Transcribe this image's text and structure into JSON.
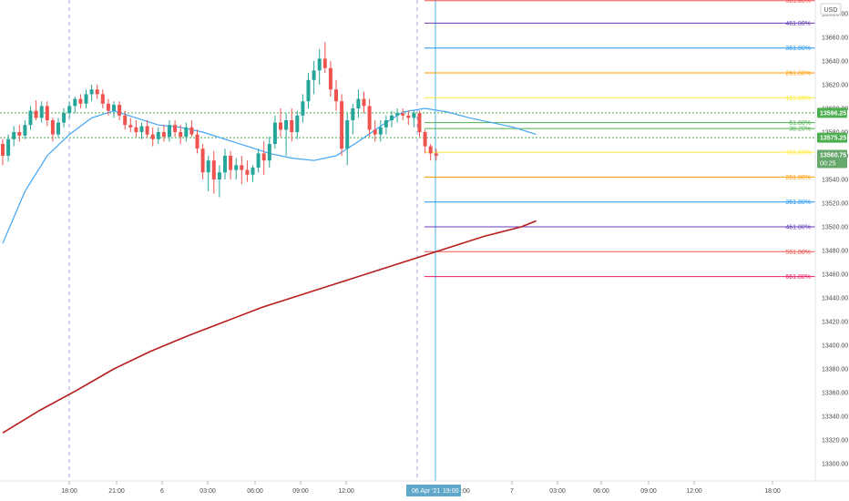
{
  "currency_label": "USD",
  "y_ticks": [
    "13680.00",
    "13660.00",
    "13640.00",
    "13620.00",
    "13600.00",
    "13580.00",
    "13560.00",
    "13540.00",
    "13520.00",
    "13500.00",
    "13480.00",
    "13460.00",
    "13440.00",
    "13420.00",
    "13400.00",
    "13380.00",
    "13360.00",
    "13340.00",
    "13320.00",
    "13300.00"
  ],
  "x_ticks": [
    "18:00",
    "21:00",
    "6",
    "03:00",
    "06:00",
    "09:00",
    "12:00",
    "7",
    "03:00",
    "06:00",
    "09:00",
    "12:00",
    "18:00"
  ],
  "cursor_date": "06 Apr '21",
  "cursor_time": "19:00",
  "cursor_right": ":00",
  "price_tags": {
    "upper": "13596.25",
    "mid": "13575.25",
    "last": "13560.75",
    "countdown": "00:25"
  },
  "colors": {
    "up": "#26a69a",
    "down": "#ef5350",
    "ema_fast": "#42a5f5",
    "ema_slow": "#b71c1c",
    "tag_green": "#4caf50",
    "cursor": "#4db6e8"
  },
  "fib_levels": [
    {
      "label": "561.80%",
      "value": 13691,
      "color": "#ef5350"
    },
    {
      "label": "461.80%",
      "value": 13672,
      "color": "#673ab7"
    },
    {
      "label": "361.80%",
      "value": 13651,
      "color": "#2196f3"
    },
    {
      "label": "261.80%",
      "value": 13630,
      "color": "#ff9800"
    },
    {
      "label": "161.80%",
      "value": 13609,
      "color": "#ffeb3b"
    },
    {
      "label": "61.80%",
      "value": 13588,
      "color": "#4caf50"
    },
    {
      "label": "38.20%",
      "value": 13583,
      "color": "#4caf50"
    },
    {
      "label": "161.80%",
      "value": 13563,
      "color": "#ffeb3b"
    },
    {
      "label": "261.80%",
      "value": 13542,
      "color": "#ff9800"
    },
    {
      "label": "361.80%",
      "value": 13521,
      "color": "#2196f3"
    },
    {
      "label": "461.80%",
      "value": 13500,
      "color": "#673ab7"
    },
    {
      "label": "561.80%",
      "value": 13479,
      "color": "#ef5350"
    },
    {
      "label": "661.80%",
      "value": 13458,
      "color": "#e91e63"
    }
  ],
  "chart_data": {
    "type": "candlestick",
    "y_axis_range": [
      13290,
      13695
    ],
    "horizontal_lines": [
      13596.25,
      13575.25
    ],
    "candles": [
      [
        13570,
        13574,
        13552,
        13560
      ],
      [
        13560,
        13578,
        13555,
        13574
      ],
      [
        13574,
        13585,
        13568,
        13580
      ],
      [
        13580,
        13586,
        13572,
        13577
      ],
      [
        13577,
        13590,
        13574,
        13586
      ],
      [
        13586,
        13602,
        13582,
        13598
      ],
      [
        13598,
        13607,
        13590,
        13592
      ],
      [
        13592,
        13606,
        13588,
        13602
      ],
      [
        13602,
        13606,
        13585,
        13590
      ],
      [
        13590,
        13592,
        13572,
        13578
      ],
      [
        13578,
        13592,
        13575,
        13588
      ],
      [
        13588,
        13600,
        13584,
        13596
      ],
      [
        13596,
        13606,
        13592,
        13602
      ],
      [
        13602,
        13610,
        13596,
        13608
      ],
      [
        13608,
        13612,
        13600,
        13604
      ],
      [
        13604,
        13616,
        13600,
        13612
      ],
      [
        13612,
        13620,
        13606,
        13616
      ],
      [
        13616,
        13620,
        13608,
        13612
      ],
      [
        13612,
        13616,
        13600,
        13604
      ],
      [
        13604,
        13608,
        13594,
        13598
      ],
      [
        13598,
        13606,
        13592,
        13603
      ],
      [
        13603,
        13606,
        13590,
        13594
      ],
      [
        13594,
        13598,
        13582,
        13586
      ],
      [
        13586,
        13592,
        13580,
        13584
      ],
      [
        13584,
        13590,
        13576,
        13580
      ],
      [
        13580,
        13588,
        13574,
        13585
      ],
      [
        13585,
        13590,
        13575,
        13578
      ],
      [
        13578,
        13584,
        13568,
        13574
      ],
      [
        13574,
        13584,
        13570,
        13580
      ],
      [
        13580,
        13586,
        13572,
        13576
      ],
      [
        13576,
        13590,
        13572,
        13586
      ],
      [
        13586,
        13590,
        13576,
        13580
      ],
      [
        13580,
        13586,
        13570,
        13576
      ],
      [
        13576,
        13588,
        13572,
        13584
      ],
      [
        13584,
        13590,
        13576,
        13578
      ],
      [
        13578,
        13582,
        13562,
        13566
      ],
      [
        13566,
        13570,
        13540,
        13546
      ],
      [
        13546,
        13560,
        13530,
        13556
      ],
      [
        13556,
        13564,
        13528,
        13540
      ],
      [
        13540,
        13552,
        13525,
        13546
      ],
      [
        13546,
        13566,
        13540,
        13560
      ],
      [
        13560,
        13564,
        13540,
        13548
      ],
      [
        13548,
        13558,
        13540,
        13552
      ],
      [
        13552,
        13560,
        13536,
        13548
      ],
      [
        13548,
        13556,
        13538,
        13544
      ],
      [
        13544,
        13552,
        13538,
        13550
      ],
      [
        13550,
        13566,
        13546,
        13562
      ],
      [
        13562,
        13572,
        13544,
        13556
      ],
      [
        13556,
        13576,
        13550,
        13570
      ],
      [
        13570,
        13594,
        13566,
        13588
      ],
      [
        13588,
        13600,
        13576,
        13582
      ],
      [
        13582,
        13596,
        13560,
        13590
      ],
      [
        13590,
        13600,
        13572,
        13580
      ],
      [
        13580,
        13598,
        13574,
        13594
      ],
      [
        13594,
        13612,
        13588,
        13606
      ],
      [
        13606,
        13630,
        13600,
        13624
      ],
      [
        13624,
        13640,
        13612,
        13632
      ],
      [
        13632,
        13650,
        13620,
        13642
      ],
      [
        13642,
        13656,
        13630,
        13634
      ],
      [
        13634,
        13640,
        13610,
        13616
      ],
      [
        13616,
        13624,
        13598,
        13606
      ],
      [
        13606,
        13612,
        13560,
        13566
      ],
      [
        13566,
        13596,
        13552,
        13590
      ],
      [
        13590,
        13604,
        13578,
        13600
      ],
      [
        13600,
        13616,
        13592,
        13608
      ],
      [
        13608,
        13614,
        13596,
        13602
      ],
      [
        13602,
        13608,
        13576,
        13582
      ],
      [
        13582,
        13590,
        13572,
        13578
      ],
      [
        13578,
        13590,
        13572,
        13584
      ],
      [
        13584,
        13594,
        13578,
        13590
      ],
      [
        13590,
        13598,
        13584,
        13594
      ],
      [
        13594,
        13600,
        13588,
        13596
      ],
      [
        13596,
        13600,
        13590,
        13594
      ],
      [
        13594,
        13598,
        13586,
        13592
      ],
      [
        13592,
        13598,
        13584,
        13596
      ],
      [
        13596,
        13598,
        13576,
        13580
      ],
      [
        13580,
        13582,
        13562,
        13568
      ],
      [
        13568,
        13570,
        13556,
        13562
      ],
      [
        13562,
        13566,
        13556,
        13560
      ]
    ],
    "ema_fast": [
      [
        0,
        13486
      ],
      [
        12,
        13530
      ],
      [
        24,
        13560
      ],
      [
        36,
        13578
      ],
      [
        48,
        13592
      ],
      [
        60,
        13598
      ],
      [
        72,
        13592
      ],
      [
        84,
        13586
      ],
      [
        96,
        13584
      ],
      [
        108,
        13580
      ],
      [
        120,
        13574
      ],
      [
        132,
        13568
      ],
      [
        144,
        13562
      ],
      [
        156,
        13558
      ],
      [
        168,
        13556
      ],
      [
        180,
        13560
      ],
      [
        192,
        13572
      ],
      [
        204,
        13585
      ],
      [
        216,
        13597
      ],
      [
        228,
        13600
      ],
      [
        240,
        13597
      ],
      [
        252,
        13592
      ],
      [
        264,
        13588
      ],
      [
        276,
        13584
      ],
      [
        288,
        13578
      ]
    ],
    "ema_slow": [
      [
        0,
        13326
      ],
      [
        20,
        13345
      ],
      [
        40,
        13362
      ],
      [
        60,
        13380
      ],
      [
        80,
        13395
      ],
      [
        100,
        13408
      ],
      [
        120,
        13420
      ],
      [
        140,
        13432
      ],
      [
        160,
        13442
      ],
      [
        180,
        13452
      ],
      [
        200,
        13462
      ],
      [
        220,
        13472
      ],
      [
        240,
        13482
      ],
      [
        260,
        13492
      ],
      [
        280,
        13500
      ],
      [
        288,
        13505
      ]
    ]
  }
}
